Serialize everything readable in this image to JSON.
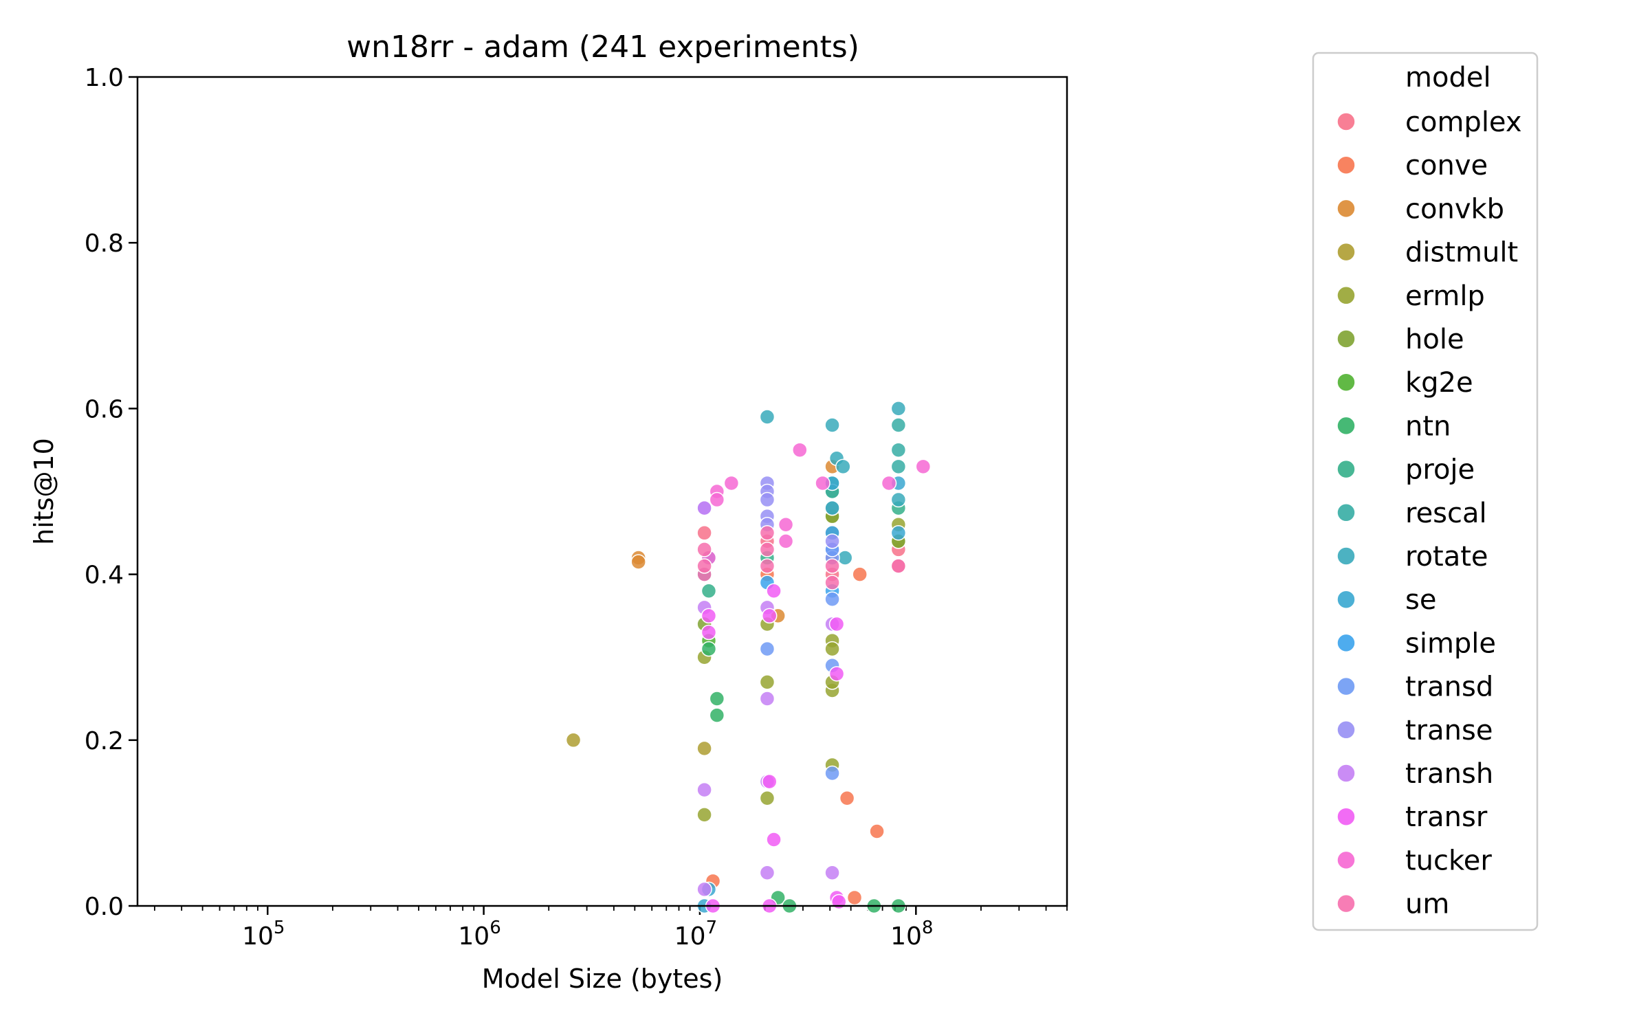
{
  "chart_data": {
    "type": "scatter",
    "title": "wn18rr - adam  (241 experiments)",
    "xlabel": "Model Size (bytes)",
    "ylabel": "hits@10",
    "xscale": "log",
    "xlim": [
      25000,
      500000000
    ],
    "ylim": [
      0,
      1
    ],
    "x_ticks": [
      {
        "value": 100000,
        "base": "10",
        "exp": "5"
      },
      {
        "value": 1000000,
        "base": "10",
        "exp": "6"
      },
      {
        "value": 10000000,
        "base": "10",
        "exp": "7"
      },
      {
        "value": 100000000,
        "base": "10",
        "exp": "8"
      }
    ],
    "y_ticks": [
      "0.0",
      "0.2",
      "0.4",
      "0.6",
      "0.8",
      "1.0"
    ],
    "grid": false,
    "legend": {
      "title": "model",
      "placement": "outside-right"
    },
    "series": [
      {
        "name": "complex",
        "color": "#f77189",
        "points": [
          [
            10500000,
            0.45
          ],
          [
            20500000,
            0.44
          ],
          [
            41000000,
            0.42
          ],
          [
            83000000,
            0.43
          ],
          [
            83000000,
            0.41
          ],
          [
            41000000,
            0.4
          ]
        ]
      },
      {
        "name": "conve",
        "color": "#f7754f",
        "points": [
          [
            55000000,
            0.4
          ],
          [
            48000000,
            0.13
          ],
          [
            66000000,
            0.09
          ],
          [
            52000000,
            0.01
          ],
          [
            11500000,
            0.03
          ],
          [
            20500000,
            0.4
          ]
        ]
      },
      {
        "name": "convkb",
        "color": "#dc8932",
        "points": [
          [
            5200000,
            0.42
          ],
          [
            5200000,
            0.415
          ],
          [
            41000000,
            0.53
          ],
          [
            23000000,
            0.35
          ]
        ]
      },
      {
        "name": "distmult",
        "color": "#ae9d31",
        "points": [
          [
            2600000,
            0.2
          ],
          [
            10500000,
            0.19
          ],
          [
            41000000,
            0.47
          ],
          [
            83000000,
            0.44
          ]
        ]
      },
      {
        "name": "ermlp",
        "color": "#97a431",
        "points": [
          [
            10500000,
            0.3
          ],
          [
            10500000,
            0.11
          ],
          [
            20500000,
            0.27
          ],
          [
            20500000,
            0.13
          ],
          [
            20500000,
            0.34
          ],
          [
            41000000,
            0.32
          ],
          [
            41000000,
            0.31
          ],
          [
            41000000,
            0.26
          ],
          [
            41000000,
            0.17
          ],
          [
            41000000,
            0.27
          ],
          [
            83000000,
            0.46
          ]
        ]
      },
      {
        "name": "hole",
        "color": "#80a332",
        "points": [
          [
            41000000,
            0.47
          ],
          [
            83000000,
            0.44
          ],
          [
            41000000,
            0.45
          ],
          [
            10500000,
            0.34
          ]
        ]
      },
      {
        "name": "kg2e",
        "color": "#50b131",
        "points": [
          [
            41000000,
            0.48
          ],
          [
            41000000,
            0.5
          ],
          [
            11000000,
            0.32
          ]
        ]
      },
      {
        "name": "ntn",
        "color": "#32b166",
        "points": [
          [
            12000000,
            0.25
          ],
          [
            12000000,
            0.23
          ],
          [
            23000000,
            0.01
          ],
          [
            26000000,
            0.0
          ],
          [
            64000000,
            0.0
          ],
          [
            83000000,
            0.0
          ],
          [
            11000000,
            0.31
          ]
        ]
      },
      {
        "name": "proje",
        "color": "#34af8a",
        "points": [
          [
            41000000,
            0.51
          ],
          [
            83000000,
            0.48
          ],
          [
            11000000,
            0.38
          ],
          [
            20500000,
            0.42
          ]
        ]
      },
      {
        "name": "rescal",
        "color": "#36ada4",
        "points": [
          [
            83000000,
            0.58
          ],
          [
            83000000,
            0.55
          ],
          [
            83000000,
            0.53
          ],
          [
            41000000,
            0.5
          ],
          [
            10500000,
            0.4
          ]
        ]
      },
      {
        "name": "rotate",
        "color": "#38aabb",
        "points": [
          [
            20500000,
            0.59
          ],
          [
            41000000,
            0.58
          ],
          [
            83000000,
            0.6
          ],
          [
            43000000,
            0.54
          ],
          [
            46000000,
            0.53
          ],
          [
            83000000,
            0.49
          ],
          [
            47000000,
            0.42
          ],
          [
            11000000,
            0.42
          ]
        ]
      },
      {
        "name": "se",
        "color": "#39a7d0",
        "points": [
          [
            41000000,
            0.51
          ],
          [
            41000000,
            0.48
          ],
          [
            83000000,
            0.51
          ],
          [
            83000000,
            0.45
          ],
          [
            11000000,
            0.02
          ],
          [
            10500000,
            0.0
          ]
        ]
      },
      {
        "name": "simple",
        "color": "#3ba3ec",
        "points": [
          [
            41000000,
            0.45
          ],
          [
            41000000,
            0.43
          ],
          [
            41000000,
            0.38
          ],
          [
            20500000,
            0.39
          ]
        ]
      },
      {
        "name": "transd",
        "color": "#6e9af4",
        "points": [
          [
            41000000,
            0.37
          ],
          [
            41000000,
            0.29
          ],
          [
            41000000,
            0.16
          ],
          [
            20500000,
            0.31
          ],
          [
            41000000,
            0.42
          ],
          [
            41000000,
            0.43
          ]
        ]
      },
      {
        "name": "transe",
        "color": "#978ff4",
        "points": [
          [
            20500000,
            0.51
          ],
          [
            20500000,
            0.5
          ],
          [
            20500000,
            0.49
          ],
          [
            20500000,
            0.47
          ],
          [
            20500000,
            0.46
          ],
          [
            10500000,
            0.48
          ],
          [
            41000000,
            0.44
          ]
        ]
      },
      {
        "name": "transh",
        "color": "#c47ff4",
        "points": [
          [
            10500000,
            0.48
          ],
          [
            10500000,
            0.36
          ],
          [
            20500000,
            0.36
          ],
          [
            20500000,
            0.25
          ],
          [
            20500000,
            0.15
          ],
          [
            20500000,
            0.04
          ],
          [
            41000000,
            0.04
          ],
          [
            41000000,
            0.34
          ],
          [
            10500000,
            0.14
          ],
          [
            10500000,
            0.02
          ]
        ]
      },
      {
        "name": "transr",
        "color": "#f15cf4",
        "points": [
          [
            11000000,
            0.35
          ],
          [
            11000000,
            0.33
          ],
          [
            21000000,
            0.15
          ],
          [
            22000000,
            0.08
          ],
          [
            21000000,
            0.35
          ],
          [
            22000000,
            0.38
          ],
          [
            43000000,
            0.34
          ],
          [
            43000000,
            0.28
          ],
          [
            43000000,
            0.01
          ],
          [
            44000000,
            0.005
          ],
          [
            21000000,
            0.0
          ],
          [
            11500000,
            0.0
          ]
        ]
      },
      {
        "name": "tucker",
        "color": "#f667d3",
        "points": [
          [
            12000000,
            0.5
          ],
          [
            14000000,
            0.51
          ],
          [
            12000000,
            0.49
          ],
          [
            29000000,
            0.55
          ],
          [
            37000000,
            0.51
          ],
          [
            75000000,
            0.51
          ],
          [
            108000000,
            0.53
          ],
          [
            25000000,
            0.46
          ],
          [
            25000000,
            0.44
          ],
          [
            11000000,
            0.42
          ]
        ]
      },
      {
        "name": "um",
        "color": "#f66fad",
        "points": [
          [
            10500000,
            0.43
          ],
          [
            10500000,
            0.4
          ],
          [
            20500000,
            0.45
          ],
          [
            20500000,
            0.43
          ],
          [
            20500000,
            0.41
          ],
          [
            41000000,
            0.39
          ],
          [
            41000000,
            0.41
          ],
          [
            10500000,
            0.41
          ],
          [
            83000000,
            0.41
          ]
        ]
      }
    ]
  }
}
